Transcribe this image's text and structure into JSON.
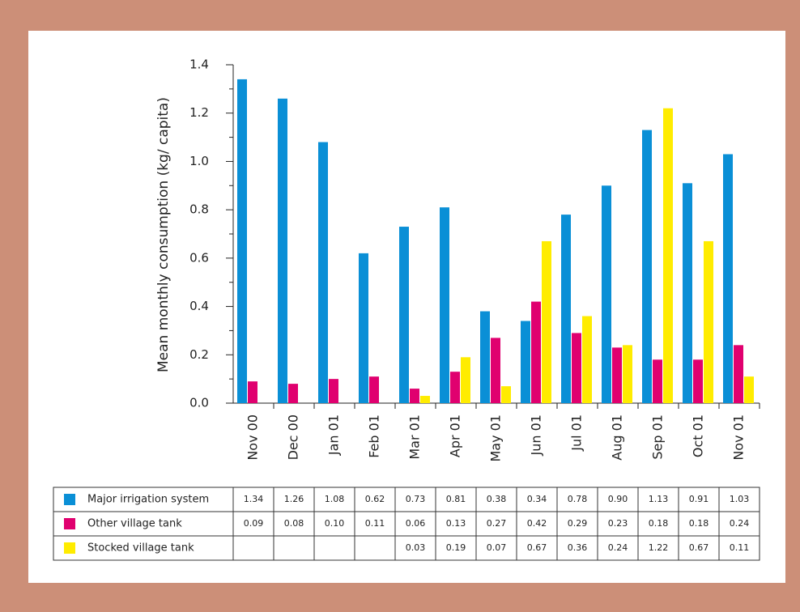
{
  "chart_data": {
    "type": "bar",
    "ylabel": "Mean monthly consumption (kg/ capita)",
    "categories": [
      "Nov 00",
      "Dec 00",
      "Jan 01",
      "Feb 01",
      "Mar 01",
      "Apr 01",
      "May 01",
      "Jun 01",
      "Jul 01",
      "Aug 01",
      "Sep 01",
      "Oct 01",
      "Nov 01"
    ],
    "series": [
      {
        "name": "Major irrigation system",
        "color": "#0a8fd6",
        "values": [
          1.34,
          1.26,
          1.08,
          0.62,
          0.73,
          0.81,
          0.38,
          0.34,
          0.78,
          0.9,
          1.13,
          0.91,
          1.03
        ],
        "value_labels": [
          "1.34",
          "1.26",
          "1.08",
          "0.62",
          "0.73",
          "0.81",
          "0.38",
          "0.34",
          "0.78",
          "0.90",
          "1.13",
          "0.91",
          "1.03"
        ]
      },
      {
        "name": "Other village tank",
        "color": "#e0006f",
        "values": [
          0.09,
          0.08,
          0.1,
          0.11,
          0.06,
          0.13,
          0.27,
          0.42,
          0.29,
          0.23,
          0.18,
          0.18,
          0.24
        ],
        "value_labels": [
          "0.09",
          "0.08",
          "0.10",
          "0.11",
          "0.06",
          "0.13",
          "0.27",
          "0.42",
          "0.29",
          "0.23",
          "0.18",
          "0.18",
          "0.24"
        ]
      },
      {
        "name": "Stocked village tank",
        "color": "#ffec00",
        "values": [
          null,
          null,
          null,
          null,
          0.03,
          0.19,
          0.07,
          0.67,
          0.36,
          0.24,
          1.22,
          0.67,
          0.11
        ]
      }
    ],
    "ylim": [
      0,
      1.4
    ],
    "yticks": [
      {
        "value": 0,
        "label": "0.0"
      },
      0.2,
      0.4,
      0.6,
      0.8,
      {
        "value": 1,
        "label": "1.0"
      },
      1.2,
      1.4
    ],
    "yminorticks": [
      0.1,
      0.3,
      0.5,
      0.7,
      0.9,
      1.1,
      1.3
    ]
  }
}
